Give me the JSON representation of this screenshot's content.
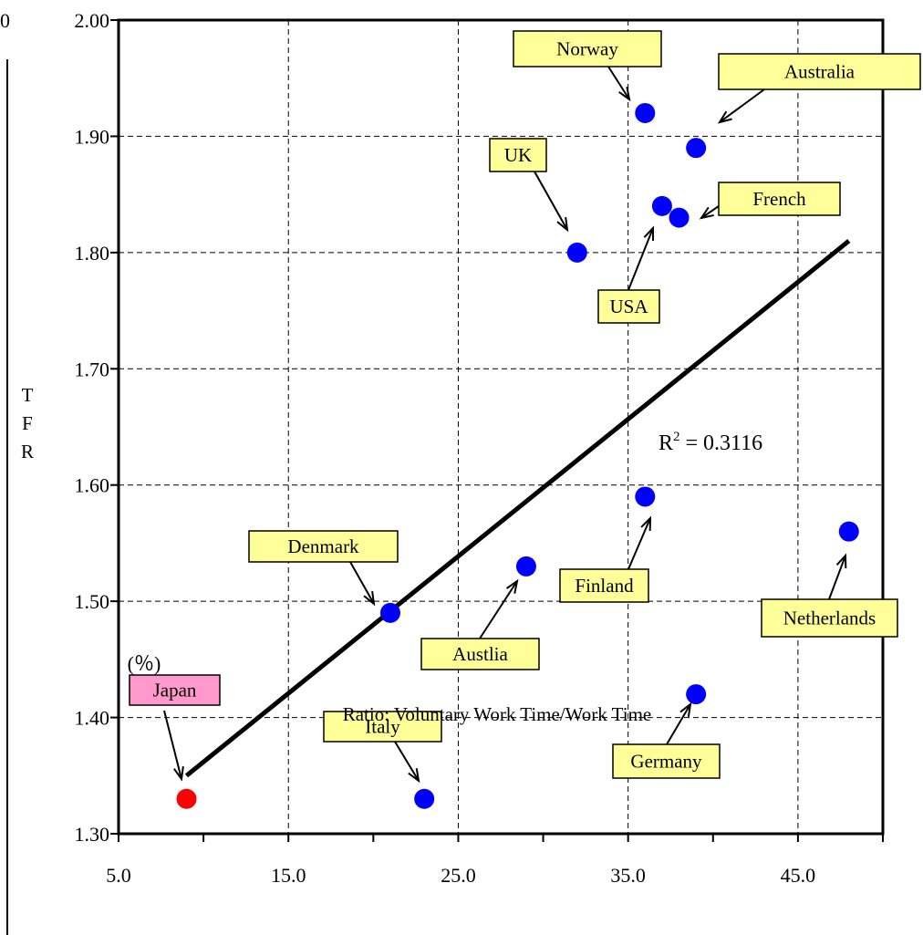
{
  "chart_data": {
    "type": "scatter",
    "title": "",
    "xlabel": "Ratio: Voluntary Work Time/Work Time",
    "x_unit": "(％)",
    "ylabel": "TFR",
    "xlim": [
      5.0,
      50.0
    ],
    "ylim": [
      1.3,
      2.0
    ],
    "x_ticks": [
      "5.0",
      "15.0",
      "25.0",
      "35.0",
      "45.0"
    ],
    "y_ticks": [
      "1.30",
      "1.40",
      "1.50",
      "1.60",
      "1.70",
      "1.80",
      "1.90",
      "2.00"
    ],
    "grid": true,
    "cropped_left_tick": "0",
    "points": [
      {
        "label": "Japan",
        "x": 9.0,
        "y": 1.33,
        "color": "#ff0000",
        "label_bg": "#ff99cc"
      },
      {
        "label": "Italy",
        "x": 23.0,
        "y": 1.33,
        "color": "#0000ff",
        "label_bg": "#ffff99"
      },
      {
        "label": "Denmark",
        "x": 21.0,
        "y": 1.49,
        "color": "#0000ff",
        "label_bg": "#ffff99"
      },
      {
        "label": "Austlia",
        "x": 29.0,
        "y": 1.53,
        "color": "#0000ff",
        "label_bg": "#ffff99"
      },
      {
        "label": "Finland",
        "x": 36.0,
        "y": 1.59,
        "color": "#0000ff",
        "label_bg": "#ffff99"
      },
      {
        "label": "Germany",
        "x": 39.0,
        "y": 1.42,
        "color": "#0000ff",
        "label_bg": "#ffff99"
      },
      {
        "label": "Netherlands",
        "x": 48.0,
        "y": 1.56,
        "color": "#0000ff",
        "label_bg": "#ffff99"
      },
      {
        "label": "UK",
        "x": 32.0,
        "y": 1.8,
        "color": "#0000ff",
        "label_bg": "#ffff99"
      },
      {
        "label": "USA",
        "x": 37.0,
        "y": 1.84,
        "color": "#0000ff",
        "label_bg": "#ffff99"
      },
      {
        "label": "French",
        "x": 38.0,
        "y": 1.83,
        "color": "#0000ff",
        "label_bg": "#ffff99"
      },
      {
        "label": "Norway",
        "x": 36.0,
        "y": 1.92,
        "color": "#0000ff",
        "label_bg": "#ffff99"
      },
      {
        "label": "Australia",
        "x": 39.0,
        "y": 1.89,
        "color": "#0000ff",
        "label_bg": "#ffff99"
      }
    ],
    "trendline": {
      "x": [
        9.0,
        48.0
      ],
      "y": [
        1.35,
        1.81
      ],
      "r2_base": "R",
      "r2_exp": "2",
      "r2_value": " = 0.3116"
    }
  }
}
